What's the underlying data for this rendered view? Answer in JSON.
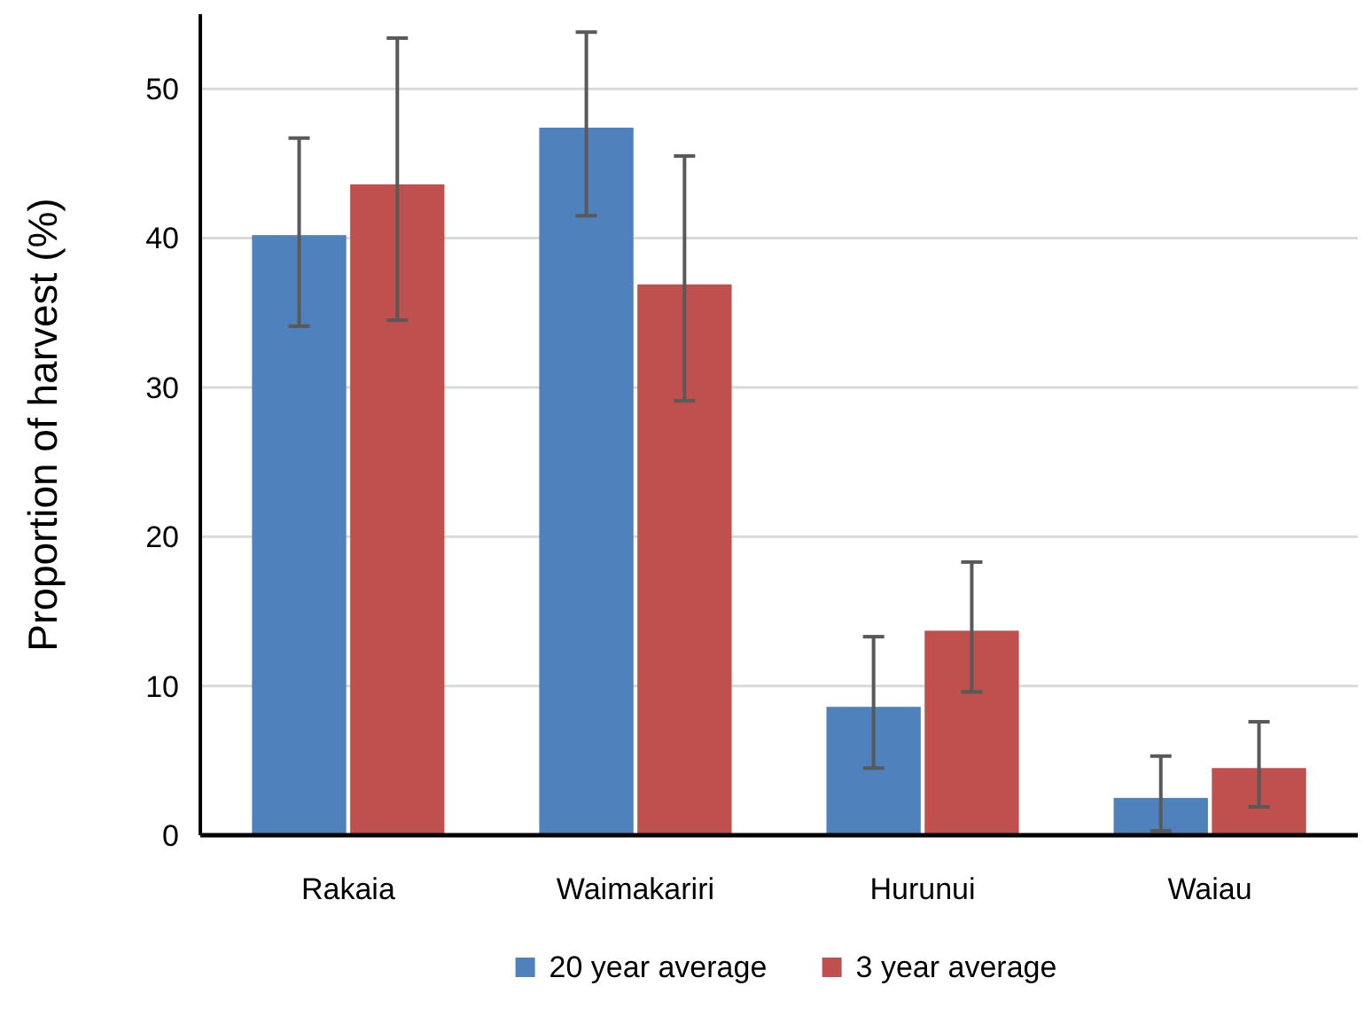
{
  "chart_data": {
    "type": "bar",
    "ylabel": "Proportion of harvest (%)",
    "categories": [
      "Rakaia",
      "Waimakariri",
      "Hurunui",
      "Waiau"
    ],
    "series": [
      {
        "name": "20 year average",
        "color": "#4f81bd",
        "values": [
          40.2,
          47.4,
          8.6,
          2.5
        ],
        "errors": [
          [
            34.1,
            46.7
          ],
          [
            41.5,
            53.8
          ],
          [
            4.5,
            13.3
          ],
          [
            0.3,
            5.3
          ]
        ]
      },
      {
        "name": "3 year average",
        "color": "#c0504d",
        "values": [
          43.6,
          36.9,
          13.7,
          4.5
        ],
        "errors": [
          [
            34.5,
            53.4
          ],
          [
            29.1,
            45.5
          ],
          [
            9.6,
            18.3
          ],
          [
            1.9,
            7.6
          ]
        ]
      }
    ],
    "ylim": [
      0,
      55
    ],
    "yticks": [
      0,
      10,
      20,
      30,
      40,
      50
    ],
    "grid": "y",
    "legend": "bottom"
  }
}
